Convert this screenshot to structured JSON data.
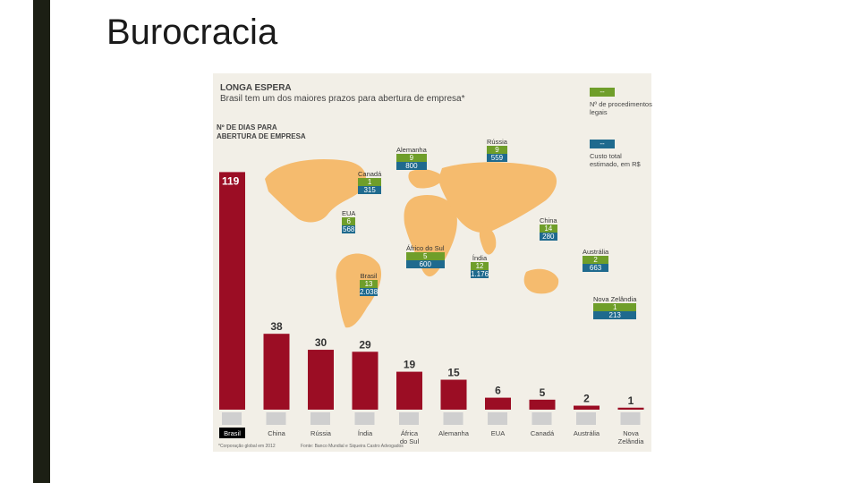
{
  "slide": {
    "title": "Burocracia"
  },
  "figure": {
    "title": "LONGA ESPERA",
    "subtitle": "Brasil tem um dos maiores prazos para abertura de empresa*",
    "y_header_1": "Nº DE DIAS PARA",
    "y_header_2": "ABERTURA DE EMPRESA",
    "legend": {
      "procedures_box": "--",
      "procedures_label": "Nº de procedimentos legais",
      "cost_box": "--",
      "cost_label": "Custo total estimado, em R$"
    },
    "footnote_left": "*Corporação global em 2012",
    "footnote_right": "Fonte: Banco Mundial e Siqueira Castro Advogados"
  },
  "chart_data": {
    "type": "bar",
    "title": "LONGA ESPERA",
    "subtitle": "Brasil tem um dos maiores prazos para abertura de empresa*",
    "ylabel": "Nº DE DIAS PARA ABERTURA DE EMPRESA",
    "categories": [
      "Brasil",
      "China",
      "Rússia",
      "Índia",
      "África do Sul",
      "Alemanha",
      "EUA",
      "Canadá",
      "Austrália",
      "Nova Zelândia"
    ],
    "values": [
      119,
      38,
      30,
      29,
      19,
      15,
      6,
      5,
      2,
      1
    ],
    "ylim": [
      0,
      125
    ],
    "colors": {
      "bar": "#9b0d24",
      "map": "#f5bb6e",
      "procedures": "#6f9e2a",
      "cost": "#1f6a8e",
      "highlight_label": "#000000"
    },
    "map_callouts": [
      {
        "country": "Alemanha",
        "procedures": "9",
        "cost": "800"
      },
      {
        "country": "Rússia",
        "procedures": "9",
        "cost": "559"
      },
      {
        "country": "Canadá",
        "procedures": "1",
        "cost": "315"
      },
      {
        "country": "EUA",
        "procedures": "6",
        "cost": "568"
      },
      {
        "country": "China",
        "procedures": "14",
        "cost": "280"
      },
      {
        "country": "Áfrico do Sul",
        "procedures": "5",
        "cost": "600"
      },
      {
        "country": "Índia",
        "procedures": "12",
        "cost": "1.176"
      },
      {
        "country": "Austrália",
        "procedures": "2",
        "cost": "663"
      },
      {
        "country": "Brasil",
        "procedures": "13",
        "cost": "2.038"
      },
      {
        "country": "Nova Zelândia",
        "procedures": "1",
        "cost": "213"
      }
    ]
  }
}
